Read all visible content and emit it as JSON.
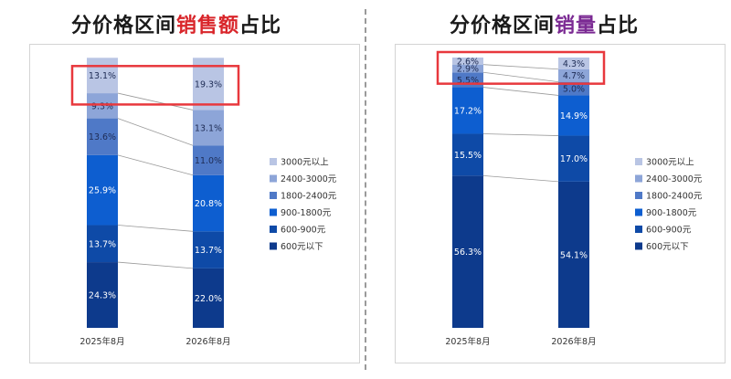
{
  "left": {
    "title_prefix": "分价格区间",
    "title_highlight": "销售额",
    "title_suffix": "占比"
  },
  "right": {
    "title_prefix": "分价格区间",
    "title_highlight": "销量",
    "title_suffix": "占比"
  },
  "colors": [
    "#0d3a8c",
    "#0e4aa7",
    "#0d5ed0",
    "#4f79c7",
    "#8da5d8",
    "#b9c5e4"
  ],
  "highlight_box_color": "#e8383d",
  "chart_data": [
    {
      "type": "bar",
      "stacked": true,
      "normalized": true,
      "categories": [
        "2025年8月",
        "2026年8月"
      ],
      "series": [
        {
          "name": "600元以下",
          "values": [
            24.3,
            22.0
          ]
        },
        {
          "name": "600-900元",
          "values": [
            13.7,
            13.7
          ]
        },
        {
          "name": "900-1800元",
          "values": [
            25.9,
            20.8
          ]
        },
        {
          "name": "1800-2400元",
          "values": [
            13.6,
            11.0
          ]
        },
        {
          "name": "2400-3000元",
          "values": [
            9.3,
            13.1
          ]
        },
        {
          "name": "3000元以上",
          "values": [
            13.1,
            19.3
          ]
        }
      ],
      "labels": [
        [
          "24.3%",
          "22.0%"
        ],
        [
          "13.7%",
          "13.7%"
        ],
        [
          "25.9%",
          "20.8%"
        ],
        [
          "13.6%",
          "11.0%"
        ],
        [
          "9.3%",
          "13.1%"
        ],
        [
          "13.1%",
          "19.3%"
        ]
      ],
      "ylim": [
        0,
        100
      ],
      "legend_position": "right",
      "highlighted_series": "3000元以上"
    },
    {
      "type": "bar",
      "stacked": true,
      "normalized": true,
      "categories": [
        "2025年8月",
        "2026年8月"
      ],
      "series": [
        {
          "name": "600元以下",
          "values": [
            56.3,
            54.1
          ]
        },
        {
          "name": "600-900元",
          "values": [
            15.5,
            17.0
          ]
        },
        {
          "name": "900-1800元",
          "values": [
            17.2,
            14.9
          ]
        },
        {
          "name": "1800-2400元",
          "values": [
            5.5,
            5.0
          ]
        },
        {
          "name": "2400-3000元",
          "values": [
            2.9,
            4.7
          ]
        },
        {
          "name": "3000元以上",
          "values": [
            2.6,
            4.3
          ]
        }
      ],
      "labels": [
        [
          "56.3%",
          "54.1%"
        ],
        [
          "15.5%",
          "17.0%"
        ],
        [
          "17.2%",
          "14.9%"
        ],
        [
          "5.5%",
          "5.0%"
        ],
        [
          "2.9%",
          "4.7%"
        ],
        [
          "2.6%",
          "4.3%"
        ]
      ],
      "ylim": [
        0,
        100
      ],
      "legend_position": "right",
      "highlighted_series": [
        "2400-3000元",
        "3000元以上"
      ]
    }
  ]
}
